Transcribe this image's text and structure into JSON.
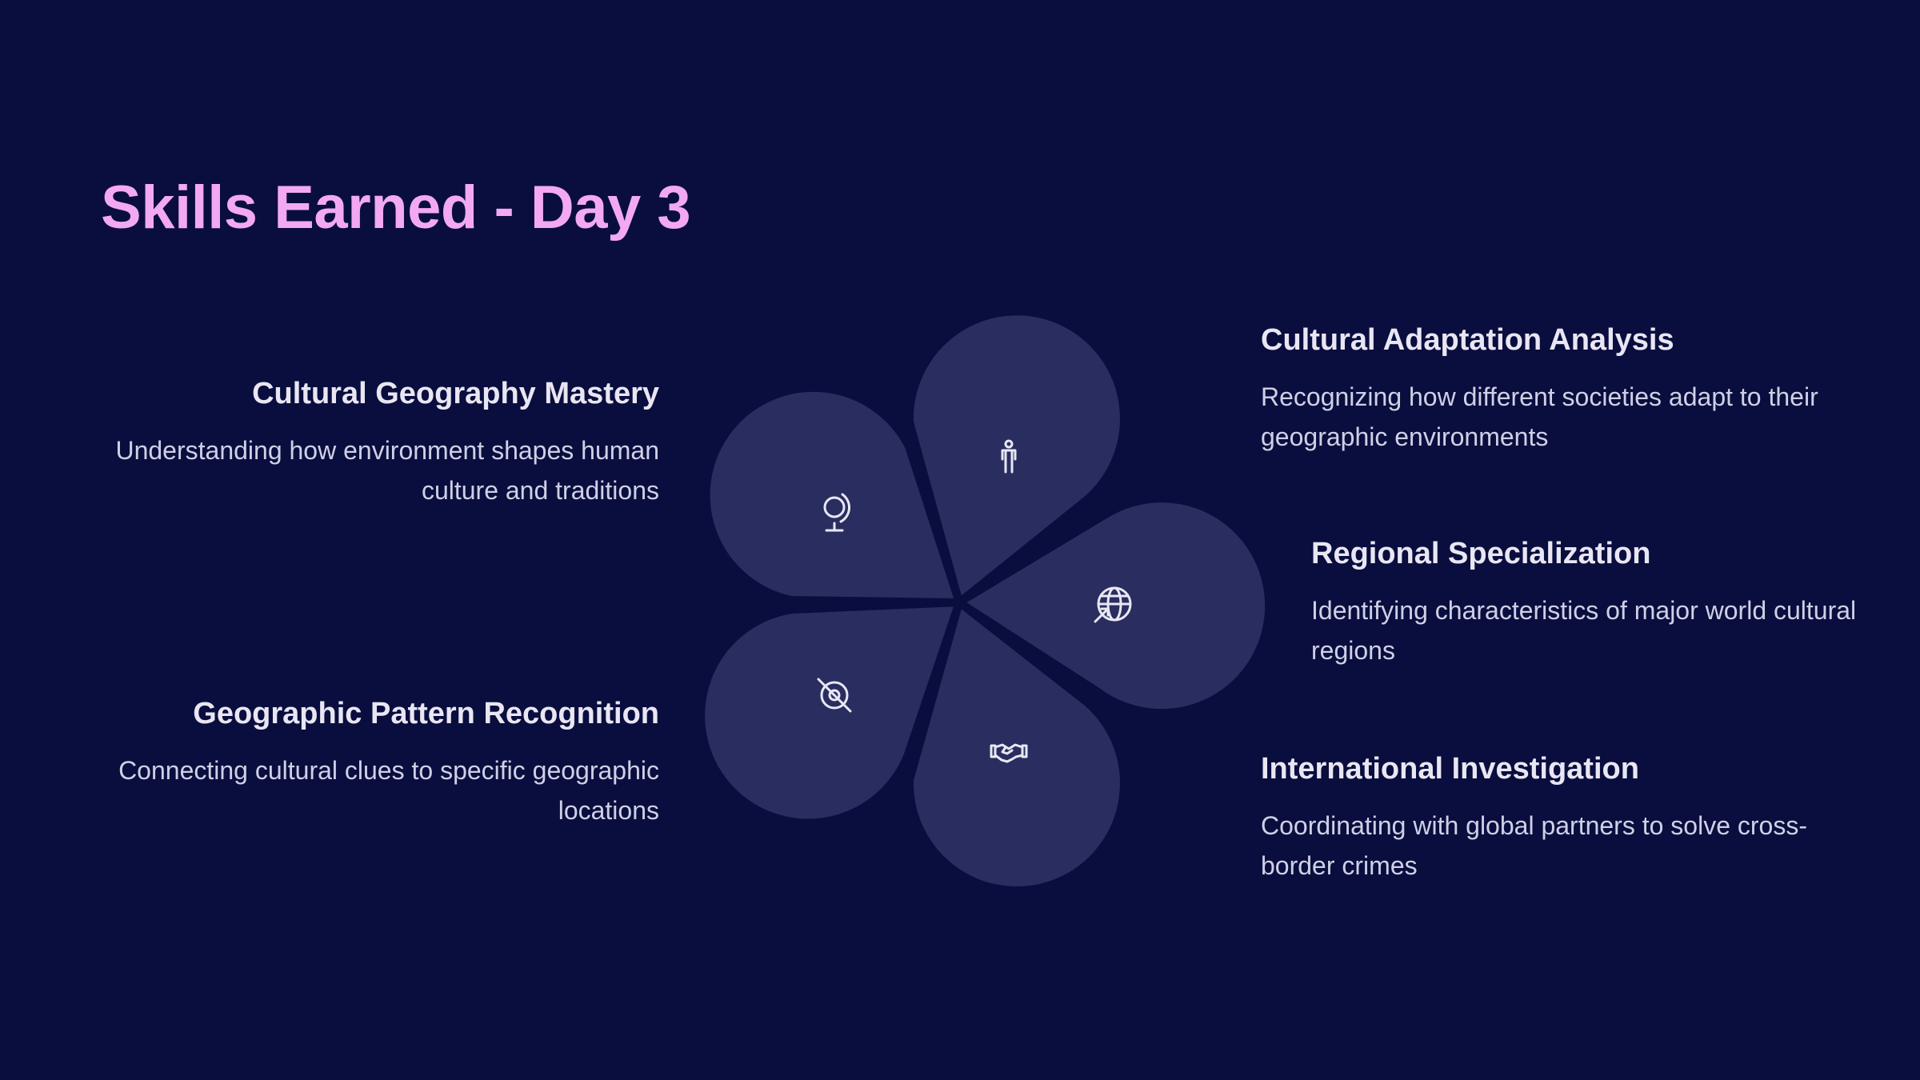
{
  "title": "Skills Earned - Day 3",
  "colors": {
    "background": "#0a0e3e",
    "title": "#f2a9f2",
    "petal": "#2a2d5f",
    "icon": "#e8e8f4"
  },
  "skills": [
    {
      "heading": "Cultural Geography Mastery",
      "description": "Understanding how environment shapes human culture and traditions",
      "icon": "globe-icon"
    },
    {
      "heading": "Cultural Adaptation Analysis",
      "description": "Recognizing how different societies adapt to their geographic environments",
      "icon": "person-icon"
    },
    {
      "heading": "Regional Specialization",
      "description": "Identifying characteristics of major world cultural regions",
      "icon": "world-arrow-icon"
    },
    {
      "heading": "Geographic Pattern Recognition",
      "description": "Connecting cultural clues to specific geographic locations",
      "icon": "location-off-icon"
    },
    {
      "heading": "International Investigation",
      "description": "Coordinating with global partners to solve cross-border crimes",
      "icon": "handshake-icon"
    }
  ]
}
